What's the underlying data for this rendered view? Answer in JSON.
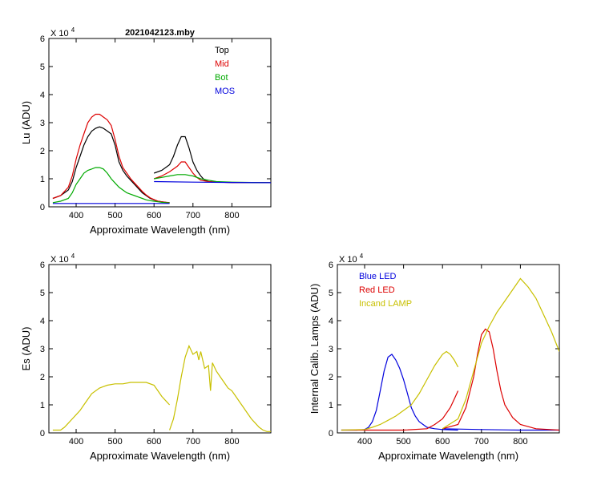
{
  "chart_data": [
    {
      "id": "lu",
      "type": "line",
      "title": "2021042123.mby",
      "xlabel": "Approximate Wavelength (nm)",
      "ylabel": "Lu (ADU)",
      "multiplier": "X 10",
      "multiplier_exp": "4",
      "xlim": [
        330,
        900
      ],
      "ylim": [
        0,
        6
      ],
      "xticks": [
        400,
        500,
        600,
        700,
        800
      ],
      "yticks": [
        0,
        1,
        2,
        3,
        4,
        5,
        6
      ],
      "legend_position": "top-right",
      "series": [
        {
          "name": "Top",
          "color": "#000000",
          "x": [
            340,
            360,
            380,
            390,
            400,
            410,
            420,
            430,
            440,
            450,
            460,
            470,
            480,
            490,
            500,
            510,
            520,
            530,
            540,
            550,
            560,
            570,
            580,
            590,
            600,
            610,
            620,
            630,
            640
          ],
          "y": [
            0.3,
            0.4,
            0.6,
            0.9,
            1.4,
            1.8,
            2.2,
            2.5,
            2.7,
            2.8,
            2.85,
            2.8,
            2.7,
            2.6,
            2.2,
            1.6,
            1.3,
            1.1,
            0.95,
            0.8,
            0.65,
            0.5,
            0.4,
            0.3,
            0.25,
            0.2,
            0.18,
            0.16,
            0.15
          ]
        },
        {
          "name": "Top",
          "color": "#000000",
          "x": [
            600,
            620,
            640,
            650,
            660,
            670,
            680,
            690,
            700,
            710,
            720,
            730,
            740,
            760,
            800,
            850,
            900
          ],
          "y": [
            1.2,
            1.3,
            1.5,
            1.8,
            2.2,
            2.5,
            2.5,
            2.1,
            1.6,
            1.3,
            1.1,
            0.95,
            0.9,
            0.88,
            0.87,
            0.87,
            0.86
          ]
        },
        {
          "name": "Mid",
          "color": "#dd0000",
          "x": [
            340,
            360,
            380,
            390,
            400,
            410,
            420,
            430,
            440,
            450,
            460,
            470,
            480,
            490,
            500,
            510,
            520,
            530,
            540,
            550,
            560,
            570,
            580,
            590,
            600,
            610,
            620,
            630,
            640
          ],
          "y": [
            0.3,
            0.4,
            0.7,
            1.1,
            1.7,
            2.2,
            2.6,
            3.0,
            3.2,
            3.3,
            3.3,
            3.2,
            3.1,
            2.9,
            2.4,
            1.8,
            1.4,
            1.2,
            1.0,
            0.85,
            0.7,
            0.55,
            0.42,
            0.32,
            0.26,
            0.2,
            0.18,
            0.16,
            0.15
          ]
        },
        {
          "name": "Mid",
          "color": "#dd0000",
          "x": [
            600,
            620,
            640,
            660,
            670,
            680,
            690,
            700,
            710,
            720,
            740,
            760,
            800,
            850,
            900
          ],
          "y": [
            1.0,
            1.1,
            1.25,
            1.45,
            1.6,
            1.6,
            1.4,
            1.2,
            1.05,
            0.95,
            0.9,
            0.88,
            0.87,
            0.87,
            0.86
          ]
        },
        {
          "name": "Bot",
          "color": "#00aa00",
          "x": [
            340,
            360,
            380,
            390,
            400,
            410,
            420,
            430,
            440,
            450,
            460,
            470,
            480,
            490,
            500,
            510,
            520,
            530,
            540,
            550,
            560,
            570,
            580,
            590,
            600,
            610,
            620,
            630,
            640
          ],
          "y": [
            0.15,
            0.2,
            0.3,
            0.5,
            0.8,
            1.0,
            1.2,
            1.3,
            1.35,
            1.4,
            1.4,
            1.35,
            1.2,
            1.0,
            0.85,
            0.7,
            0.6,
            0.5,
            0.45,
            0.4,
            0.35,
            0.3,
            0.25,
            0.22,
            0.2,
            0.18,
            0.16,
            0.15,
            0.14
          ]
        },
        {
          "name": "Bot",
          "color": "#00aa00",
          "x": [
            600,
            620,
            640,
            660,
            680,
            700,
            720,
            740,
            760,
            800,
            850,
            900
          ],
          "y": [
            1.0,
            1.05,
            1.1,
            1.15,
            1.15,
            1.1,
            1.0,
            0.95,
            0.9,
            0.88,
            0.87,
            0.86
          ]
        },
        {
          "name": "MOS",
          "color": "#0000dd",
          "x": [
            340,
            400,
            500,
            600,
            640
          ],
          "y": [
            0.12,
            0.12,
            0.12,
            0.12,
            0.12
          ]
        },
        {
          "name": "MOS",
          "color": "#0000dd",
          "x": [
            600,
            700,
            800,
            900
          ],
          "y": [
            0.9,
            0.88,
            0.87,
            0.86
          ]
        }
      ],
      "legend": [
        {
          "name": "Top",
          "color": "#000000"
        },
        {
          "name": "Mid",
          "color": "#dd0000"
        },
        {
          "name": "Bot",
          "color": "#00aa00"
        },
        {
          "name": "MOS",
          "color": "#0000dd"
        }
      ]
    },
    {
      "id": "es",
      "type": "line",
      "xlabel": "Approximate Wavelength (nm)",
      "ylabel": "Es (ADU)",
      "multiplier": "X 10",
      "multiplier_exp": "4",
      "xlim": [
        330,
        900
      ],
      "ylim": [
        0,
        6
      ],
      "xticks": [
        400,
        500,
        600,
        700,
        800
      ],
      "yticks": [
        0,
        1,
        2,
        3,
        4,
        5,
        6
      ],
      "series": [
        {
          "name": "",
          "color": "#c8c000",
          "x": [
            340,
            350,
            360,
            370,
            380,
            390,
            400,
            410,
            420,
            430,
            440,
            460,
            480,
            500,
            520,
            540,
            560,
            580,
            600,
            610,
            620,
            630,
            640
          ],
          "y": [
            0.1,
            0.1,
            0.1,
            0.2,
            0.35,
            0.5,
            0.65,
            0.8,
            1.0,
            1.2,
            1.4,
            1.6,
            1.7,
            1.75,
            1.75,
            1.8,
            1.8,
            1.8,
            1.7,
            1.5,
            1.3,
            1.15,
            1.0
          ]
        },
        {
          "name": "",
          "color": "#c8c000",
          "x": [
            640,
            650,
            660,
            670,
            680,
            690,
            700,
            710,
            715,
            720,
            730,
            740,
            745,
            750,
            760,
            770,
            780,
            790,
            800,
            810,
            820,
            830,
            840,
            850,
            860,
            870,
            880,
            890,
            900
          ],
          "y": [
            0.1,
            0.5,
            1.2,
            2.0,
            2.7,
            3.1,
            2.8,
            2.9,
            2.6,
            2.9,
            2.3,
            2.4,
            1.5,
            2.5,
            2.2,
            2.0,
            1.8,
            1.6,
            1.5,
            1.3,
            1.1,
            0.9,
            0.7,
            0.5,
            0.35,
            0.2,
            0.1,
            0.05,
            0.05
          ]
        }
      ]
    },
    {
      "id": "lamps",
      "type": "line",
      "xlabel": "Approximate Wavelength (nm)",
      "ylabel": "Internal Calib. Lamps  (ADU)",
      "multiplier": "X 10",
      "multiplier_exp": "4",
      "xlim": [
        330,
        900
      ],
      "ylim": [
        0,
        6
      ],
      "xticks": [
        400,
        500,
        600,
        700,
        800
      ],
      "yticks": [
        0,
        1,
        2,
        3,
        4,
        5,
        6
      ],
      "legend_position": "top-left",
      "series": [
        {
          "name": "Blue LED",
          "color": "#0000dd",
          "x": [
            340,
            380,
            400,
            410,
            420,
            430,
            440,
            450,
            460,
            470,
            480,
            490,
            500,
            510,
            520,
            530,
            540,
            560,
            580,
            600,
            640
          ],
          "y": [
            0.1,
            0.1,
            0.12,
            0.2,
            0.4,
            0.8,
            1.5,
            2.2,
            2.7,
            2.8,
            2.6,
            2.3,
            1.9,
            1.4,
            0.9,
            0.6,
            0.4,
            0.2,
            0.15,
            0.12,
            0.1
          ]
        },
        {
          "name": "Blue LED",
          "color": "#0000dd",
          "x": [
            600,
            700,
            800,
            900
          ],
          "y": [
            0.15,
            0.12,
            0.1,
            0.1
          ]
        },
        {
          "name": "Red LED",
          "color": "#dd0000",
          "x": [
            340,
            500,
            560,
            580,
            600,
            620,
            630,
            640
          ],
          "y": [
            0.1,
            0.1,
            0.15,
            0.3,
            0.5,
            0.9,
            1.2,
            1.5
          ]
        },
        {
          "name": "Red LED",
          "color": "#dd0000",
          "x": [
            600,
            640,
            660,
            680,
            690,
            700,
            710,
            720,
            730,
            740,
            750,
            760,
            780,
            800,
            840,
            900
          ],
          "y": [
            0.15,
            0.3,
            0.9,
            2.0,
            2.8,
            3.5,
            3.7,
            3.6,
            3.0,
            2.2,
            1.5,
            1.0,
            0.55,
            0.3,
            0.15,
            0.1
          ]
        },
        {
          "name": "Incand LAMP",
          "color": "#c8c000",
          "x": [
            340,
            400,
            420,
            440,
            460,
            480,
            500,
            520,
            540,
            560,
            580,
            600,
            610,
            620,
            630,
            640
          ],
          "y": [
            0.1,
            0.12,
            0.2,
            0.3,
            0.45,
            0.6,
            0.8,
            1.0,
            1.4,
            1.9,
            2.4,
            2.8,
            2.9,
            2.8,
            2.6,
            2.35
          ]
        },
        {
          "name": "Incand LAMP",
          "color": "#c8c000",
          "x": [
            600,
            640,
            660,
            680,
            700,
            720,
            740,
            760,
            780,
            800,
            820,
            840,
            860,
            880,
            900
          ],
          "y": [
            0.15,
            0.5,
            1.2,
            2.2,
            3.2,
            3.8,
            4.3,
            4.7,
            5.1,
            5.5,
            5.2,
            4.8,
            4.2,
            3.6,
            2.9
          ]
        }
      ],
      "legend": [
        {
          "name": "Blue LED",
          "color": "#0000dd"
        },
        {
          "name": "Red LED",
          "color": "#dd0000"
        },
        {
          "name": "Incand LAMP",
          "color": "#c8c000"
        }
      ]
    }
  ]
}
